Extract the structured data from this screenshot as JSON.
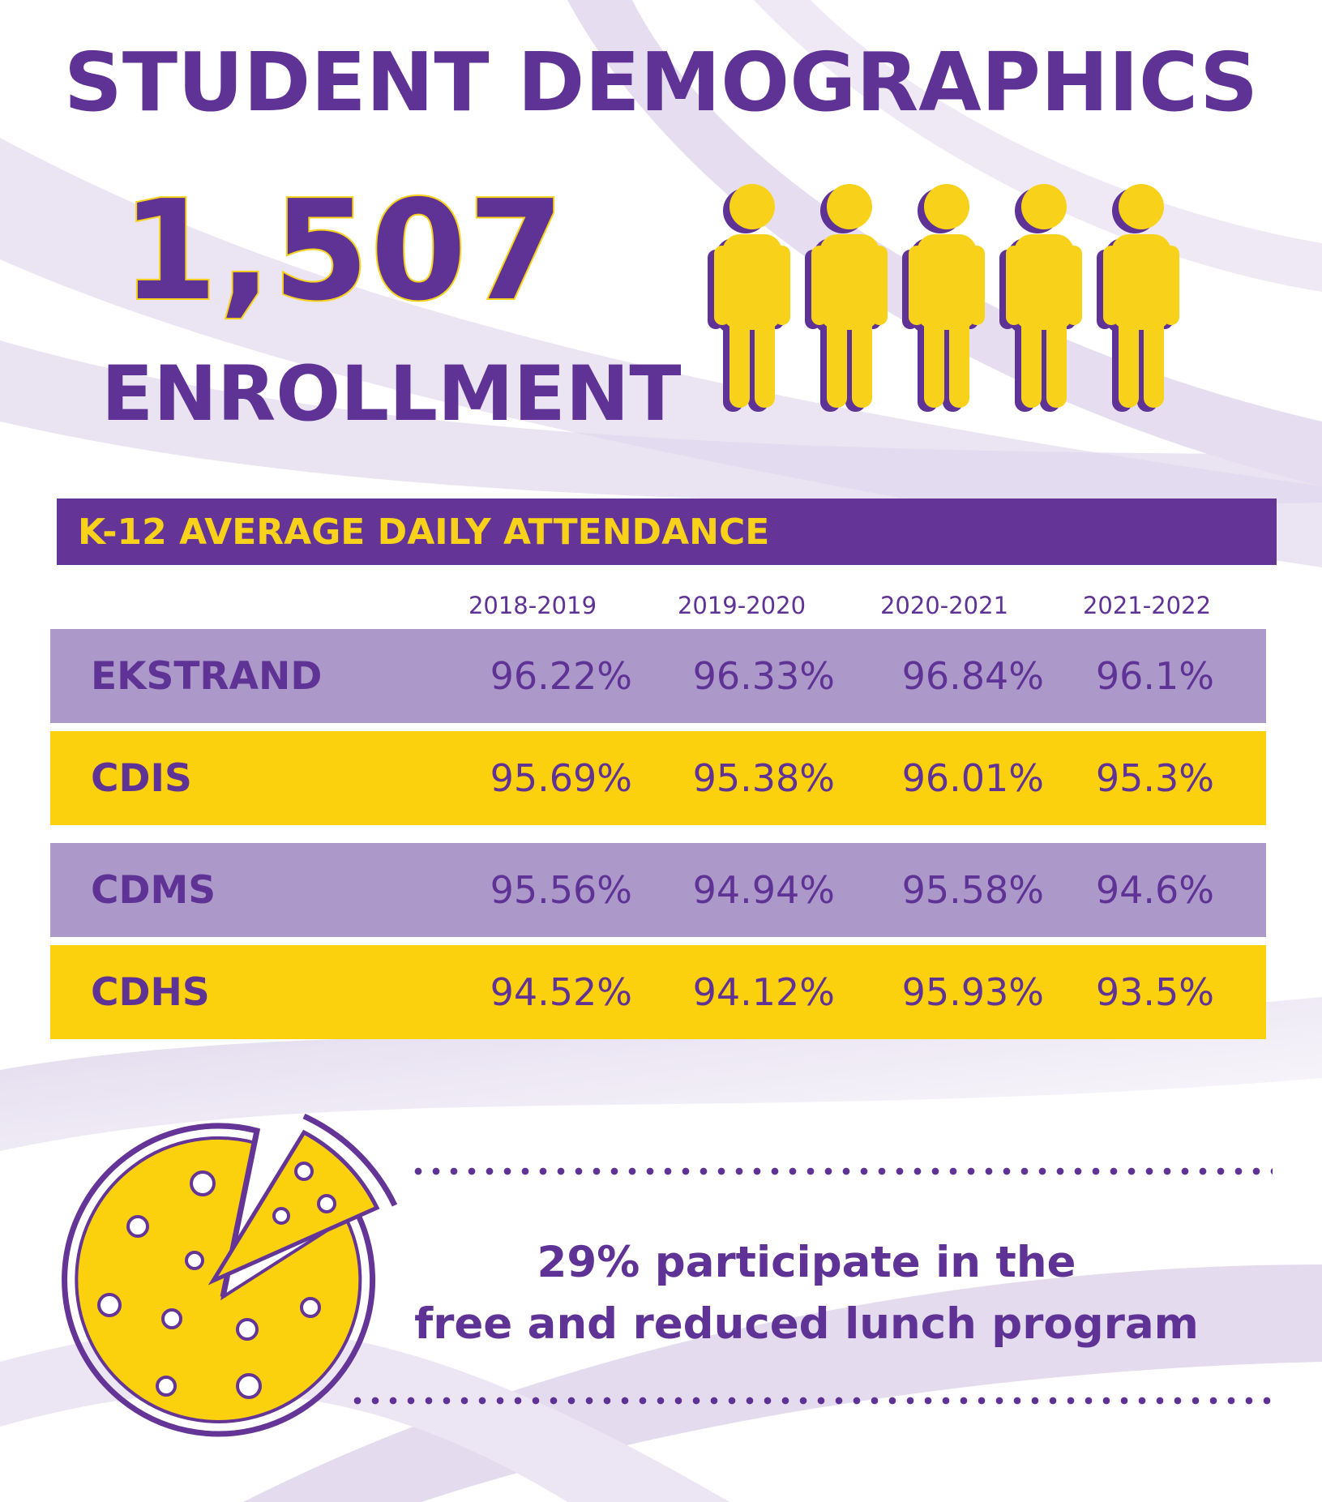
{
  "title": "STUDENT DEMOGRAPHICS",
  "enrollment": {
    "number": "1,507",
    "label": "ENROLLMENT",
    "icon": "person-icon"
  },
  "colors": {
    "purple": "#5f3295",
    "purple_light": "#ad99c9",
    "yellow": "#fbd10d"
  },
  "attendance": {
    "header": "K-12 AVERAGE DAILY ATTENDANCE",
    "years": [
      "2018-2019",
      "2019-2020",
      "2020-2021",
      "2021-2022"
    ],
    "rows": [
      {
        "name": "EKSTRAND",
        "values": [
          "96.22%",
          "96.33%",
          "96.84%",
          "96.1%"
        ]
      },
      {
        "name": "CDIS",
        "values": [
          "95.69%",
          "95.38%",
          "96.01%",
          "95.3%"
        ]
      },
      {
        "name": "CDMS",
        "values": [
          "95.56%",
          "94.94%",
          "95.58%",
          "94.6%"
        ]
      },
      {
        "name": "CDHS",
        "values": [
          "94.52%",
          "94.12%",
          "95.93%",
          "93.5%"
        ]
      }
    ]
  },
  "lunch": {
    "icon": "pizza-icon",
    "line1": "29% participate in the",
    "line2": "free and reduced lunch program"
  }
}
